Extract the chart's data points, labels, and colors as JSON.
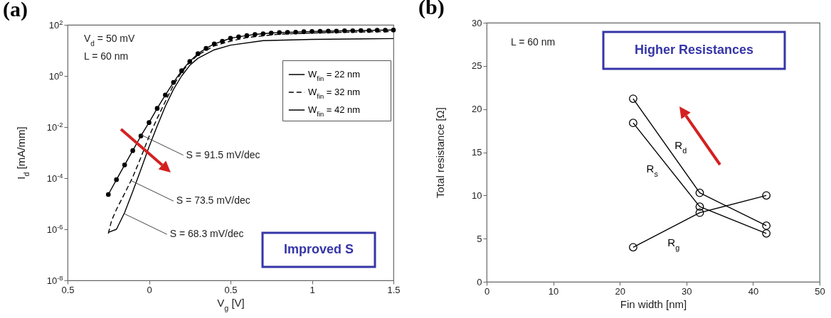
{
  "chart_data": [
    {
      "type": "line",
      "title": "(a)",
      "xlabel": "V$_{g}$ [V]",
      "ylabel": "I$_{d}$ [mA/mm]",
      "xlim": [
        -0.5,
        1.5
      ],
      "xticks": [
        {
          "value": -0.5,
          "label": "0.5"
        },
        0,
        0.5,
        1,
        1.5
      ],
      "ylim": [
        1e-08,
        100
      ],
      "yticks": [
        {
          "value": 1e-08,
          "label": "10$^{-8}$"
        },
        {
          "value": 1e-06,
          "label": "10$^{-6}$"
        },
        {
          "value": 0.0001,
          "label": "10$^{-4}$"
        },
        {
          "value": 0.01,
          "label": "10$^{-2}$"
        },
        {
          "value": 1,
          "label": "10$^{0}$"
        },
        {
          "value": 100,
          "label": "10$^{2}$"
        }
      ],
      "log": "y",
      "legend": "top right",
      "series": [
        {
          "name": "W$_{fin}$ = 22 nm",
          "color": "#000000",
          "line_style": "solid",
          "x": [
            -0.25,
            -0.2,
            -0.15,
            -0.1,
            -0.05,
            0,
            0.05,
            0.1,
            0.15,
            0.2,
            0.25,
            0.3,
            0.4,
            0.5,
            0.7,
            1.0,
            1.5
          ],
          "values": [
            7.6e-07,
            1e-06,
            4.5e-06,
            3e-05,
            0.00022,
            0.0017,
            0.011,
            0.065,
            0.3,
            1.0,
            2.6,
            4.9,
            10.5,
            16,
            24,
            27,
            29
          ]
        },
        {
          "name": "W$_{fin}$ = 32 nm",
          "color": "#000000",
          "line_style": "dashed",
          "x": [
            -0.25,
            -0.23,
            -0.2,
            -0.15,
            -0.1,
            -0.05,
            0,
            0.05,
            0.1,
            0.15,
            0.2,
            0.25,
            0.3,
            0.4,
            0.5,
            0.6,
            0.8,
            1.0,
            1.25,
            1.5
          ],
          "values": [
            6.8e-07,
            2.2e-06,
            6e-06,
            2.5e-05,
            0.00011,
            0.00065,
            0.0043,
            0.022,
            0.1,
            0.44,
            1.4,
            3.4,
            6.6,
            15,
            23,
            32,
            43,
            48,
            52,
            55
          ]
        },
        {
          "name": "W$_{fin}$ = 42 nm",
          "color": "#000000",
          "line_style": "solid",
          "marker": "circle",
          "x": [
            -0.25,
            -0.2,
            -0.15,
            -0.1,
            -0.05,
            0,
            0.05,
            0.1,
            0.15,
            0.2,
            0.25,
            0.3,
            0.35,
            0.4,
            0.45,
            0.5,
            0.55,
            0.6,
            0.65,
            0.7,
            0.75,
            0.8,
            0.85,
            0.9,
            0.95,
            1.0,
            1.05,
            1.1,
            1.15,
            1.2,
            1.25,
            1.3,
            1.35,
            1.4,
            1.45,
            1.5
          ],
          "values": [
            2.3e-05,
            8.7e-05,
            0.00033,
            0.0012,
            0.0045,
            0.015,
            0.054,
            0.18,
            0.56,
            1.6,
            3.7,
            7.4,
            12,
            18,
            23,
            30,
            34,
            38,
            42,
            45,
            48,
            50,
            51,
            52,
            54,
            55,
            56,
            57,
            57,
            59,
            59,
            60,
            60,
            62,
            62,
            63
          ]
        }
      ],
      "annotations": [
        "V$_{d}$ = 50 mV",
        "L = 60 nm",
        {
          "text": "S = 91.5 mV/dec",
          "x": -0.05,
          "y": 0.005
        },
        {
          "text": "S = 73.5 mV/dec",
          "x": -0.11,
          "y": 8e-05
        },
        {
          "text": "S = 68.3 mV/dec",
          "x": -0.15,
          "y": 4e-06
        },
        "Improved S"
      ]
    },
    {
      "type": "line",
      "title": "(b)",
      "xlabel": "Fin width [nm]",
      "ylabel": "Total resistance [Ω]",
      "xlim": [
        0,
        50
      ],
      "xticks": [
        0,
        10,
        20,
        30,
        40,
        50
      ],
      "ylim": [
        0,
        30
      ],
      "yticks": [
        0,
        5,
        10,
        15,
        20,
        25,
        30
      ],
      "marker": "circle",
      "series": [
        {
          "name": "R$_{d}$",
          "color": "#000000",
          "x": [
            22,
            32,
            42
          ],
          "values": [
            21.2,
            10.3,
            6.5
          ]
        },
        {
          "name": "R$_{s}$",
          "color": "#000000",
          "x": [
            22,
            32,
            42
          ],
          "values": [
            18.4,
            8.7,
            5.6
          ]
        },
        {
          "name": "R$_{g}$",
          "color": "#000000",
          "x": [
            22,
            32,
            42
          ],
          "values": [
            4.0,
            8.0,
            10.0
          ]
        }
      ],
      "annotations": [
        "L = 60 nm",
        "Higher Resistances"
      ]
    }
  ]
}
